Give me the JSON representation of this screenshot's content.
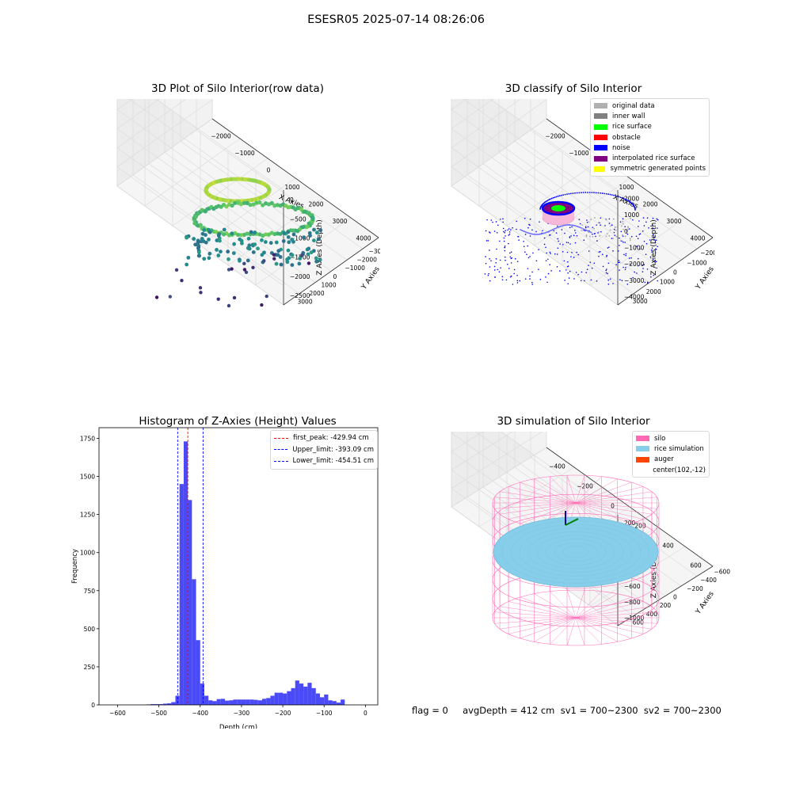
{
  "suptitle": "ESESR05 2025-07-14 08:26:06",
  "footer": "flag = 0     avgDepth = 412 cm  sv1 = 700~2300  sv2 = 700~2300",
  "chart_data": [
    {
      "type": "scatter",
      "title": "3D Plot of Silo Interior(row data)",
      "xlabel": "X Axies",
      "ylabel": "Y Axies",
      "zlabel": "Z Axies (Depth)",
      "xticks": [
        "−2000",
        "−1000",
        "0",
        "1000",
        "2000",
        "3000",
        "4000"
      ],
      "yticks": [
        "3000",
        "2000",
        "1000",
        "0",
        "−1000",
        "−2000",
        "−3000",
        "−4000"
      ],
      "zticks": [
        "0",
        "−500",
        "−1000",
        "−1500",
        "−2000",
        "−2500"
      ],
      "colormap": "viridis"
    },
    {
      "type": "scatter",
      "title": "3D classify of Silo Interior",
      "xlabel": "X Axies",
      "ylabel": "Y Axies",
      "zlabel": "Z Axies (Depth)",
      "xticks": [
        "−2000",
        "−1000",
        "0",
        "1000",
        "2000",
        "3000",
        "4000"
      ],
      "yticks": [
        "3000",
        "2000",
        "1000",
        "0",
        "−1000",
        "−2000",
        "−3000"
      ],
      "zticks": [
        "2000",
        "1000",
        "0",
        "−1000",
        "−2000",
        "−3000",
        "−4000"
      ],
      "legend": [
        {
          "label": "original data",
          "color": "#b0b0b0"
        },
        {
          "label": "inner wall",
          "color": "#808080"
        },
        {
          "label": "rice surface",
          "color": "#00ff00"
        },
        {
          "label": "obstacle",
          "color": "#ff0000"
        },
        {
          "label": "noise",
          "color": "#0000ff"
        },
        {
          "label": "interpolated rice surface",
          "color": "#800080"
        },
        {
          "label": "symmetric generated points",
          "color": "#ffff00"
        }
      ]
    },
    {
      "type": "bar",
      "title": "Histogram of Z-Axies (Height) Values",
      "xlabel": "Depth (cm)",
      "ylabel": "Frequency",
      "xlim": [
        -645,
        30
      ],
      "ylim": [
        0,
        1820
      ],
      "xticks": [
        -600,
        -500,
        -400,
        -300,
        -200,
        -100,
        0
      ],
      "yticks": [
        0,
        250,
        500,
        750,
        1000,
        1250,
        1500,
        1750
      ],
      "bar_color": "#4a4af7",
      "bin_width": 10,
      "bins": [
        {
          "x0": -530,
          "count": 3
        },
        {
          "x0": -520,
          "count": 5
        },
        {
          "x0": -510,
          "count": 5
        },
        {
          "x0": -500,
          "count": 5
        },
        {
          "x0": -490,
          "count": 8
        },
        {
          "x0": -480,
          "count": 10
        },
        {
          "x0": -470,
          "count": 18
        },
        {
          "x0": -460,
          "count": 60
        },
        {
          "x0": -450,
          "count": 1450
        },
        {
          "x0": -440,
          "count": 1730
        },
        {
          "x0": -430,
          "count": 1345
        },
        {
          "x0": -420,
          "count": 825
        },
        {
          "x0": -410,
          "count": 425
        },
        {
          "x0": -400,
          "count": 140
        },
        {
          "x0": -390,
          "count": 60
        },
        {
          "x0": -380,
          "count": 30
        },
        {
          "x0": -370,
          "count": 25
        },
        {
          "x0": -360,
          "count": 38
        },
        {
          "x0": -350,
          "count": 40
        },
        {
          "x0": -340,
          "count": 28
        },
        {
          "x0": -330,
          "count": 30
        },
        {
          "x0": -320,
          "count": 35
        },
        {
          "x0": -310,
          "count": 35
        },
        {
          "x0": -300,
          "count": 35
        },
        {
          "x0": -290,
          "count": 35
        },
        {
          "x0": -280,
          "count": 35
        },
        {
          "x0": -270,
          "count": 33
        },
        {
          "x0": -260,
          "count": 30
        },
        {
          "x0": -250,
          "count": 40
        },
        {
          "x0": -240,
          "count": 45
        },
        {
          "x0": -230,
          "count": 60
        },
        {
          "x0": -220,
          "count": 80
        },
        {
          "x0": -210,
          "count": 80
        },
        {
          "x0": -200,
          "count": 75
        },
        {
          "x0": -190,
          "count": 90
        },
        {
          "x0": -180,
          "count": 110
        },
        {
          "x0": -170,
          "count": 160
        },
        {
          "x0": -160,
          "count": 140
        },
        {
          "x0": -150,
          "count": 120
        },
        {
          "x0": -140,
          "count": 145
        },
        {
          "x0": -130,
          "count": 110
        },
        {
          "x0": -120,
          "count": 75
        },
        {
          "x0": -110,
          "count": 50
        },
        {
          "x0": -100,
          "count": 68
        },
        {
          "x0": -90,
          "count": 30
        },
        {
          "x0": -80,
          "count": 25
        },
        {
          "x0": -70,
          "count": 15
        },
        {
          "x0": -60,
          "count": 35
        }
      ],
      "lines": [
        {
          "label": "first_peak: -429.94 cm",
          "x": -429.94,
          "color": "#ff0000"
        },
        {
          "label": "Upper_limit: -393.09 cm",
          "x": -393.09,
          "color": "#0000ff"
        },
        {
          "label": "Lower_limit: -454.51 cm",
          "x": -454.51,
          "color": "#0000ff"
        }
      ]
    },
    {
      "type": "scatter",
      "title": "3D simulation of Silo Interior",
      "xlabel": "X Axies",
      "ylabel": "Y Axies",
      "zlabel": "Z Axies (Depth)",
      "xticks": [
        "−400",
        "−200",
        "0",
        "200",
        "400",
        "600"
      ],
      "yticks": [
        "600",
        "400",
        "200",
        "0",
        "−200",
        "−400",
        "−600"
      ],
      "zticks": [
        "200",
        "0",
        "−200",
        "−400",
        "−600",
        "−800",
        "−1000"
      ],
      "legend": [
        {
          "label": "silo",
          "color": "#ff69b4"
        },
        {
          "label": "rice simulation",
          "color": "#87ceeb"
        },
        {
          "label": "auger",
          "color": "#ff4500"
        },
        {
          "label": "center(102,-12)",
          "color": ""
        }
      ]
    }
  ]
}
